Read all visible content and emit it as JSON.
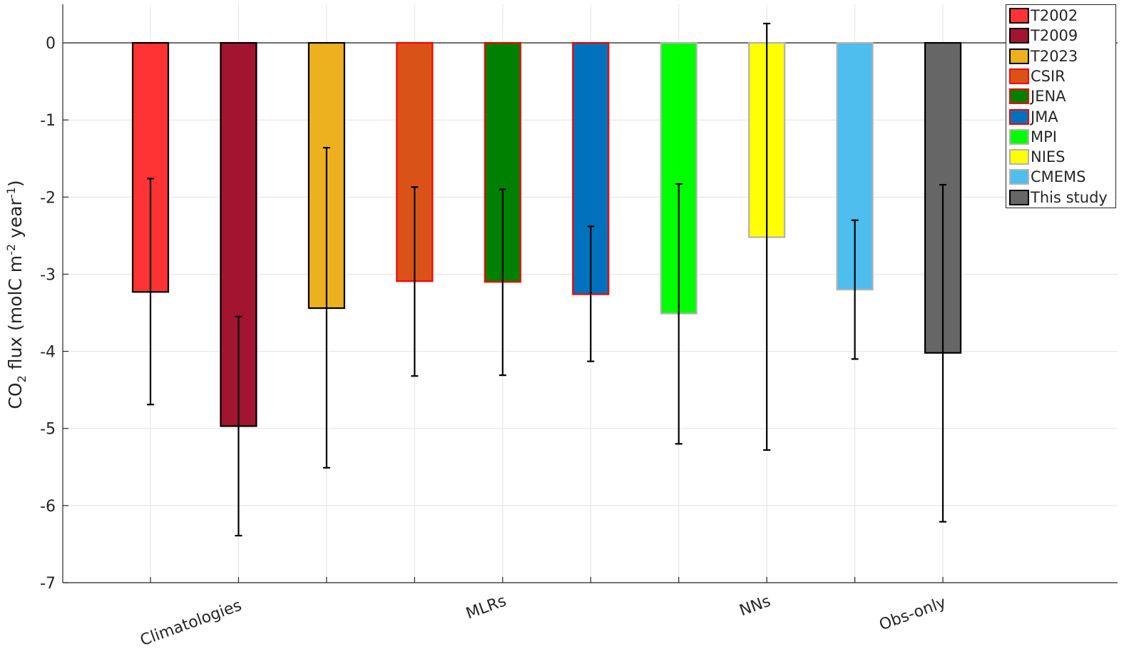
{
  "chart_data": {
    "type": "bar",
    "ylabel": {
      "prefix": "CO",
      "sub": "2",
      "mid": " flux (molC m",
      "sup1": "-2",
      "mid2": " year",
      "sup2": "-1",
      "suffix": ")"
    },
    "ylim": [
      -7,
      0.5
    ],
    "yticks": [
      0,
      -1,
      -2,
      -3,
      -4,
      -5,
      -6,
      -7
    ],
    "grid": true,
    "legend_position": "top-right",
    "group_labels": [
      "Climatologies",
      "MLRs",
      "NNs",
      "Obs-only"
    ],
    "series": [
      {
        "name": "T2002",
        "value": -3.23,
        "err_low": -4.69,
        "err_high": -1.76,
        "fill": "#ff3333",
        "edge": "#000000",
        "group": "Climatologies"
      },
      {
        "name": "T2009",
        "value": -4.97,
        "err_low": -6.39,
        "err_high": -3.55,
        "fill": "#a2142f",
        "edge": "#000000",
        "group": "Climatologies"
      },
      {
        "name": "T2023",
        "value": -3.44,
        "err_low": -5.51,
        "err_high": -1.36,
        "fill": "#edb120",
        "edge": "#000000",
        "group": "Climatologies"
      },
      {
        "name": "CSIR",
        "value": -3.09,
        "err_low": -4.32,
        "err_high": -1.87,
        "fill": "#d95319",
        "edge": "#ff0000",
        "group": "MLRs"
      },
      {
        "name": "JENA",
        "value": -3.1,
        "err_low": -4.31,
        "err_high": -1.9,
        "fill": "#008000",
        "edge": "#ff0000",
        "group": "MLRs"
      },
      {
        "name": "JMA",
        "value": -3.26,
        "err_low": -4.13,
        "err_high": -2.38,
        "fill": "#0072bd",
        "edge": "#ff0000",
        "group": "MLRs"
      },
      {
        "name": "MPI",
        "value": -3.51,
        "err_low": -5.2,
        "err_high": -1.83,
        "fill": "#00ff00",
        "edge": "#b3b3b3",
        "group": "NNs"
      },
      {
        "name": "NIES",
        "value": -2.52,
        "err_low": -5.28,
        "err_high": 0.25,
        "fill": "#ffff00",
        "edge": "#b3b3b3",
        "group": "NNs"
      },
      {
        "name": "CMEMS",
        "value": -3.2,
        "err_low": -4.1,
        "err_high": -2.3,
        "fill": "#4dbeee",
        "edge": "#b3b3b3",
        "group": "NNs"
      },
      {
        "name": "This study",
        "value": -4.02,
        "err_low": -6.21,
        "err_high": -1.84,
        "fill": "#666666",
        "edge": "#000000",
        "group": "Obs-only"
      }
    ]
  }
}
